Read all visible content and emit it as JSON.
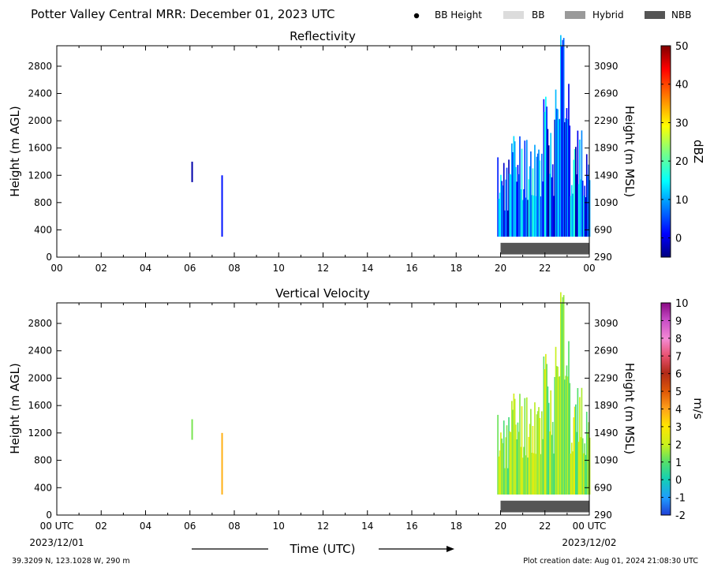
{
  "header": {
    "title": "Potter Valley Central MRR:  December 01, 2023 UTC",
    "legend": [
      {
        "label": "BB Height",
        "kind": "dot",
        "color": "#000000"
      },
      {
        "label": "BB",
        "kind": "box",
        "color": "#dcdcdc"
      },
      {
        "label": "Hybrid",
        "kind": "box",
        "color": "#9a9a9a"
      },
      {
        "label": "NBB",
        "kind": "box",
        "color": "#555555"
      }
    ]
  },
  "footer": {
    "location": "39.3209 N, 123.1028 W, 290 m",
    "creation": "Plot creation date: Aug 01, 2024 21:08:30 UTC",
    "xlabel": "Time (UTC)",
    "start_date": "2023/12/01",
    "end_date": "2023/12/02"
  },
  "chart_data": [
    {
      "type": "heatmap",
      "title": "Reflectivity",
      "xlabel": "",
      "ylabel": "Height (m AGL)",
      "ylabel_right": "Height (m MSL)",
      "xlim": [
        0,
        24
      ],
      "ylim": [
        0,
        3100
      ],
      "x_ticks": [
        "00",
        "02",
        "04",
        "06",
        "08",
        "10",
        "12",
        "14",
        "16",
        "18",
        "20",
        "22",
        "00"
      ],
      "y_ticks": [
        0,
        400,
        800,
        1200,
        1600,
        2000,
        2400,
        2800
      ],
      "y_ticks_right": [
        290,
        690,
        1090,
        1490,
        1890,
        2290,
        2690,
        3090
      ],
      "colorbar": {
        "label": "dBZ",
        "min": -5,
        "max": 50,
        "ticks": [
          0,
          10,
          20,
          30,
          40,
          50
        ],
        "scheme": "jet"
      },
      "rain_type_bar": {
        "start": 20,
        "end": 24,
        "type": "NBB"
      },
      "features": [
        {
          "x": 6.1,
          "y0": 1100,
          "y1": 1400,
          "value": -3
        },
        {
          "x": 7.45,
          "y0": 300,
          "y1": 1200,
          "value": 2
        },
        {
          "region": [
            19.85,
            24
          ],
          "y0": 300,
          "max_height": 3000,
          "value_range": [
            -4,
            18
          ],
          "peak_time": 22.75
        }
      ]
    },
    {
      "type": "heatmap",
      "title": "Vertical Velocity",
      "xlabel": "Time (UTC)",
      "ylabel": "Height (m AGL)",
      "ylabel_right": "Height (m MSL)",
      "xlim": [
        0,
        24
      ],
      "ylim": [
        0,
        3100
      ],
      "x_ticks": [
        "00 UTC",
        "02",
        "04",
        "06",
        "08",
        "10",
        "12",
        "14",
        "16",
        "18",
        "20",
        "22",
        "00 UTC"
      ],
      "y_ticks": [
        0,
        400,
        800,
        1200,
        1600,
        2000,
        2400,
        2800
      ],
      "y_ticks_right": [
        290,
        690,
        1090,
        1490,
        1890,
        2290,
        2690,
        3090
      ],
      "colorbar": {
        "label": "m/s",
        "min": -2,
        "max": 10,
        "ticks": [
          -2,
          -1,
          0,
          1,
          2,
          3,
          4,
          5,
          6,
          7,
          8,
          9,
          10
        ],
        "scheme": "velocity"
      },
      "rain_type_bar": {
        "start": 20,
        "end": 24,
        "type": "NBB"
      },
      "features": [
        {
          "x": 6.1,
          "y0": 1100,
          "y1": 1400,
          "value": 1.3
        },
        {
          "x": 7.45,
          "y0": 300,
          "y1": 1200,
          "value": 3.8
        },
        {
          "region": [
            19.85,
            24
          ],
          "y0": 300,
          "max_height": 3000,
          "value_range": [
            0.6,
            2.6
          ],
          "peak_time": 22.75
        }
      ]
    }
  ]
}
